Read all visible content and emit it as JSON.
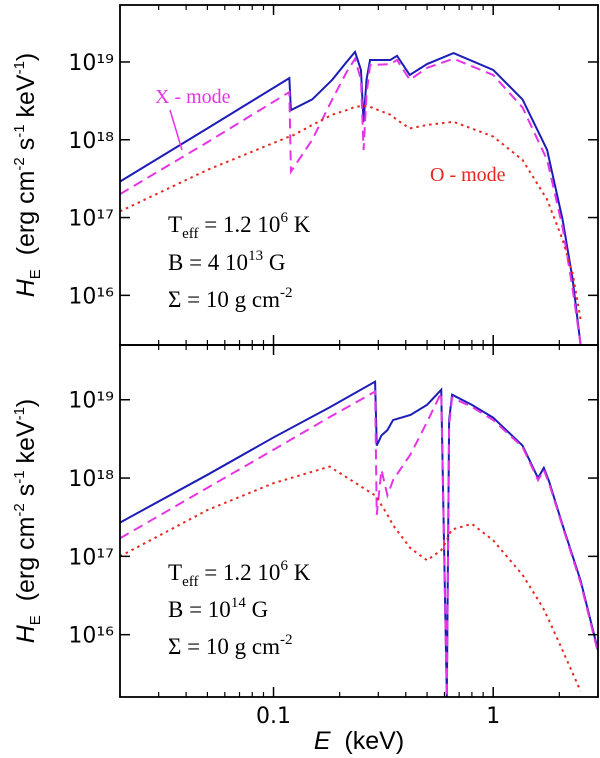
{
  "chart_data": [
    {
      "type": "line",
      "xscale": "log",
      "yscale": "log",
      "xlim": [
        0.02,
        3
      ],
      "ylim": [
        2300000000000000.0,
        5.4e+19
      ],
      "xticks": [
        0.1,
        1
      ],
      "xticklabels": false,
      "xminorticks": [
        0.02,
        0.03,
        0.04,
        0.05,
        0.06,
        0.07,
        0.08,
        0.09,
        0.2,
        0.3,
        0.4,
        0.5,
        0.6,
        0.7,
        0.8,
        0.9,
        2,
        3
      ],
      "yticks": [
        {
          "value": 1e+16,
          "label": "10¹⁶"
        },
        {
          "value": 1e+17,
          "label": "10¹⁷"
        },
        {
          "value": 1e+18,
          "label": "10¹⁸"
        },
        {
          "value": 1e+19,
          "label": "10¹⁹"
        }
      ],
      "ylabel": [
        "H",
        "E",
        "  (erg cm",
        "-2",
        " s",
        "-1",
        " keV",
        "-1",
        ")"
      ],
      "params": [
        [
          "T",
          "eff",
          " = 1.2 10",
          "6",
          " K"
        ],
        [
          "B = 4 10",
          "13",
          " G"
        ],
        [
          "Σ = 10 g cm",
          "-2"
        ]
      ],
      "x": [
        0.02,
        0.05,
        0.118,
        0.12,
        0.15,
        0.185,
        0.215,
        0.235,
        0.25,
        0.257,
        0.265,
        0.275,
        0.34,
        0.365,
        0.417,
        0.5,
        0.66,
        1,
        1.36,
        1.76,
        2.07,
        2.3,
        2.5
      ],
      "series": [
        {
          "color": "#1c1cb8",
          "style": "solid",
          "values": [
            2.9e+17,
            1.4e+18,
            6.2e+18,
            2.4e+18,
            3.3e+18,
            5.9e+18,
            1e+19,
            1.35e+19,
            7.9e+18,
            1.7e+18,
            5.9e+18,
            1.06e+19,
            1.06e+19,
            1.2e+19,
            6.8e+18,
            9.4e+18,
            1.3e+19,
            7.9e+18,
            3.3e+18,
            7.4e+17,
            9.4e+16,
            1.6e+16,
            2300000000000000.0
          ]
        },
        {
          "name": "X - mode",
          "color": "#e633e6",
          "style": "dashed",
          "values": [
            2e+17,
            9.3e+17,
            4.1e+18,
            3.9e+17,
            1e+18,
            3.3e+18,
            7.4e+18,
            1.1e+19,
            5.9e+18,
            7.4e+17,
            3.8e+18,
            9.1e+18,
            9.4e+18,
            1.06e+19,
            5.9e+18,
            8.4e+18,
            1.1e+19,
            6.8e+18,
            2.6e+18,
            5.5e+17,
            7.5e+16,
            1.2e+16,
            2300000000000000.0
          ]
        },
        {
          "name": "O - mode",
          "color": "#e8261e",
          "style": "dotted",
          "values": [
            1.2e+17,
            4.1e+17,
            1.1e+18,
            1.1e+18,
            1.55e+18,
            2.1e+18,
            2.4e+18,
            2.65e+18,
            2.7e+18,
            2.7e+18,
            2.7e+18,
            2.65e+18,
            2.1e+18,
            1.8e+18,
            1.4e+18,
            1.55e+18,
            1.7e+18,
            1.1e+18,
            5.5e+17,
            1.7e+17,
            5.2e+16,
            1.9e+16,
            4900000000000000.0
          ]
        }
      ]
    },
    {
      "type": "line",
      "xscale": "log",
      "yscale": "log",
      "xlim": [
        0.02,
        3
      ],
      "ylim": [
        1600000000000000.0,
        5e+19
      ],
      "xticks": [
        0.1,
        1
      ],
      "xticklabels": true,
      "xminorticks": [
        0.02,
        0.03,
        0.04,
        0.05,
        0.06,
        0.07,
        0.08,
        0.09,
        0.2,
        0.3,
        0.4,
        0.5,
        0.6,
        0.7,
        0.8,
        0.9,
        2,
        3
      ],
      "yticks": [
        {
          "value": 1e+16,
          "label": "10¹⁶"
        },
        {
          "value": 1e+17,
          "label": "10¹⁷"
        },
        {
          "value": 1e+18,
          "label": "10¹⁸"
        },
        {
          "value": 1e+19,
          "label": "10¹⁹"
        }
      ],
      "ylabel": [
        "H",
        "E",
        "  (erg cm",
        "-2",
        " s",
        "-1",
        " keV",
        "-1",
        ")"
      ],
      "xlabel": [
        "E",
        "  (keV)"
      ],
      "params": [
        [
          "T",
          "eff",
          " = 1.2 10",
          "6",
          " K"
        ],
        [
          "B = 10",
          "14",
          " G"
        ],
        [
          "Σ = 10 g cm",
          "-2"
        ]
      ],
      "x": [
        0.02,
        0.05,
        0.1,
        0.18,
        0.29,
        0.295,
        0.31,
        0.33,
        0.35,
        0.42,
        0.5,
        0.58,
        0.615,
        0.63,
        0.65,
        0.8,
        1,
        1.36,
        1.6,
        1.7,
        1.8,
        2.07,
        2.5,
        3
      ],
      "series": [
        {
          "color": "#1c1cb8",
          "style": "solid",
          "values": [
            2.7e+17,
            1.1e+18,
            3.3e+18,
            8e+18,
            1.7e+19,
            2.6e+18,
            3.5e+18,
            4.1e+18,
            5.5e+18,
            6.4e+18,
            8.6e+18,
            1.34e+19,
            1600000000000000.0,
            5.5e+18,
            1.16e+19,
            8.6e+18,
            5.9e+18,
            2.6e+18,
            1e+18,
            1.35e+18,
            8.9e+17,
            2.5e+17,
            4.9e+16,
            6300000000000000.0
          ]
        },
        {
          "color": "#e633e6",
          "style": "dashed",
          "values": [
            1.7e+17,
            7.5e+17,
            2.3e+18,
            6e+18,
            1.27e+19,
            3.4e+17,
            1.27e+18,
            6e+17,
            9.4e+17,
            2e+18,
            5.2e+18,
            1.23e+19,
            1600000000000000.0,
            4.8e+18,
            1.06e+19,
            8.1e+18,
            5.5e+18,
            2.5e+18,
            9.4e+17,
            1.27e+18,
            8.4e+17,
            2.4e+17,
            4.6e+16,
            5900000000000000.0
          ]
        },
        {
          "color": "#e8261e",
          "style": "dotted",
          "values": [
            1e+17,
            3.9e+17,
            8.6e+17,
            1.4e+18,
            6e+17,
            5.7e+17,
            4.5e+17,
            3.4e+17,
            2.5e+17,
            1.27e+17,
            8.9e+16,
            1.2e+17,
            1.6e+17,
            1.9e+17,
            2.2e+17,
            2.6e+17,
            1.6e+17,
            5.8e+16,
            2.8e+16,
            2.1e+16,
            1.5e+16,
            6300000000000000.0,
            1900000000000000.0,
            null
          ]
        }
      ]
    }
  ]
}
